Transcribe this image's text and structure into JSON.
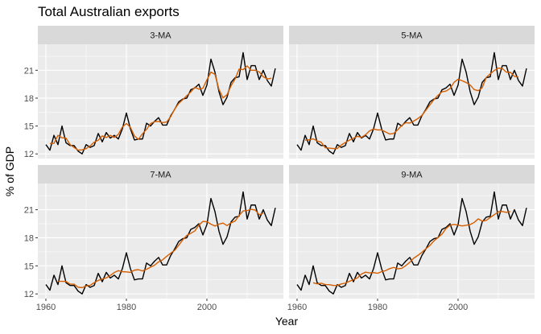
{
  "chart_data": {
    "type": "line",
    "title": "Total Australian exports",
    "xlabel": "Year",
    "ylabel": "% of GDP",
    "xlim": [
      1958,
      2019
    ],
    "ylim": [
      11.5,
      23.8
    ],
    "x_ticks": [
      1960,
      1980,
      2000
    ],
    "y_ticks": [
      12,
      15,
      18,
      21
    ],
    "grid": true,
    "legend": "none",
    "colors": {
      "data": "#000000",
      "smooth": "#D55E00",
      "panel_bg": "#EBEBEB",
      "strip_bg": "#D9D9D9",
      "grid": "#FFFFFF"
    },
    "panels": [
      {
        "label": "3-MA",
        "window": 3
      },
      {
        "label": "5-MA",
        "window": 5
      },
      {
        "label": "7-MA",
        "window": 7
      },
      {
        "label": "9-MA",
        "window": 9
      }
    ],
    "x": [
      1960,
      1961,
      1962,
      1963,
      1964,
      1965,
      1966,
      1967,
      1968,
      1969,
      1970,
      1971,
      1972,
      1973,
      1974,
      1975,
      1976,
      1977,
      1978,
      1979,
      1980,
      1981,
      1982,
      1983,
      1984,
      1985,
      1986,
      1987,
      1988,
      1989,
      1990,
      1991,
      1992,
      1993,
      1994,
      1995,
      1996,
      1997,
      1998,
      1999,
      2000,
      2001,
      2002,
      2003,
      2004,
      2005,
      2006,
      2007,
      2008,
      2009,
      2010,
      2011,
      2012,
      2013,
      2014,
      2015,
      2016,
      2017
    ],
    "series": [
      {
        "values": [
          13.0,
          12.4,
          14.0,
          13.0,
          15.0,
          13.2,
          12.9,
          12.9,
          12.3,
          12.0,
          13.0,
          12.7,
          12.9,
          14.2,
          13.3,
          14.3,
          13.7,
          14.0,
          13.6,
          14.7,
          16.4,
          14.7,
          13.5,
          13.6,
          13.6,
          15.3,
          15.0,
          15.5,
          15.9,
          15.1,
          15.1,
          16.1,
          16.8,
          17.6,
          17.9,
          18.0,
          18.9,
          19.1,
          19.5,
          18.3,
          19.4,
          22.2,
          20.8,
          18.7,
          17.3,
          18.1,
          19.7,
          20.2,
          20.3,
          22.9,
          20.0,
          21.5,
          21.5,
          20.0,
          21.0,
          19.9,
          19.3,
          21.2
        ]
      }
    ]
  }
}
